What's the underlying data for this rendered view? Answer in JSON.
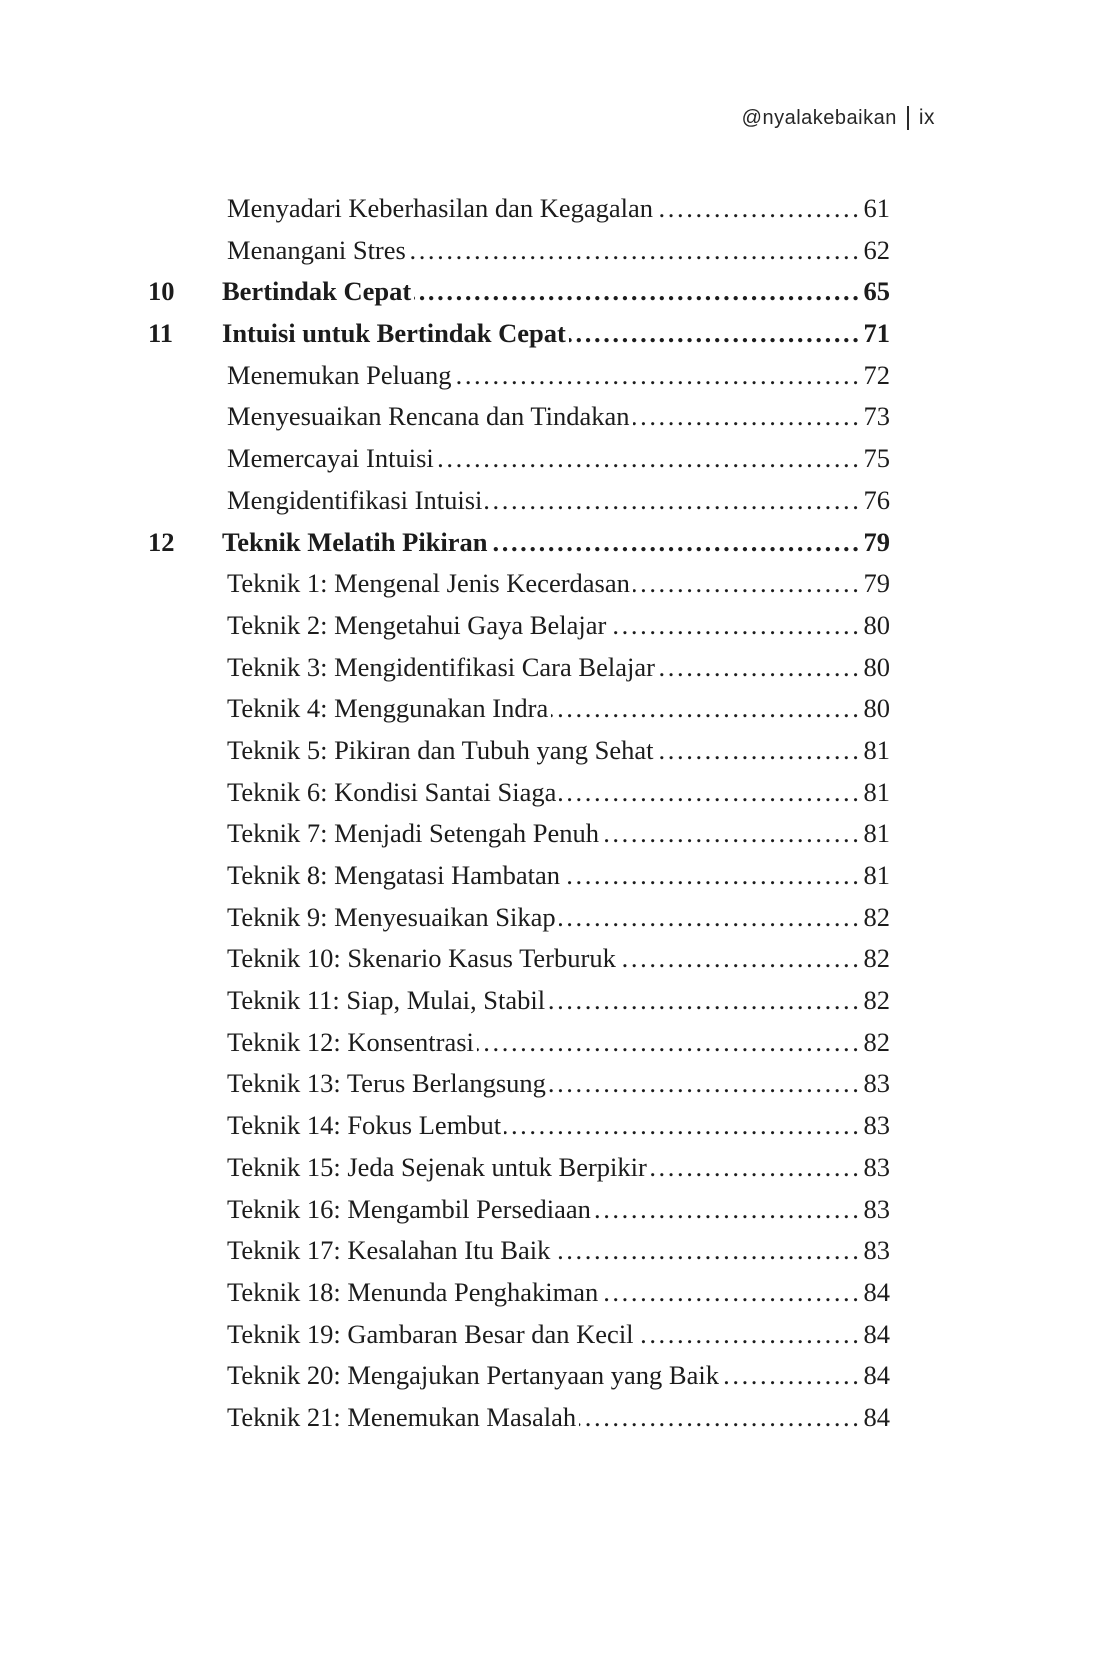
{
  "header": {
    "handle": "@nyalakebaikan",
    "separator": "|",
    "folio": "ix"
  },
  "toc": {
    "entries": [
      {
        "num": "",
        "title": "Menyadari Keberhasilan dan Kegagalan",
        "page": "61",
        "chapter": false
      },
      {
        "num": "",
        "title": "Menangani Stres",
        "page": "62",
        "chapter": false
      },
      {
        "num": "10",
        "title": "Bertindak Cepat",
        "page": "65",
        "chapter": true
      },
      {
        "num": "11",
        "title": "Intuisi untuk Bertindak Cepat",
        "page": "71",
        "chapter": true
      },
      {
        "num": "",
        "title": "Menemukan Peluang",
        "page": "72",
        "chapter": false
      },
      {
        "num": "",
        "title": "Menyesuaikan Rencana dan Tindakan",
        "page": "73",
        "chapter": false
      },
      {
        "num": "",
        "title": "Memercayai Intuisi",
        "page": "75",
        "chapter": false
      },
      {
        "num": "",
        "title": "Mengidentifikasi Intuisi",
        "page": "76",
        "chapter": false
      },
      {
        "num": "12",
        "title": "Teknik Melatih Pikiran",
        "page": "79",
        "chapter": true
      },
      {
        "num": "",
        "title": "Teknik 1: Mengenal Jenis Kecerdasan",
        "page": "79",
        "chapter": false
      },
      {
        "num": "",
        "title": "Teknik 2: Mengetahui Gaya Belajar",
        "page": "80",
        "chapter": false
      },
      {
        "num": "",
        "title": "Teknik 3: Mengidentifikasi Cara Belajar",
        "page": "80",
        "chapter": false
      },
      {
        "num": "",
        "title": "Teknik 4: Menggunakan Indra",
        "page": "80",
        "chapter": false
      },
      {
        "num": "",
        "title": "Teknik 5: Pikiran dan Tubuh yang Sehat",
        "page": "81",
        "chapter": false
      },
      {
        "num": "",
        "title": "Teknik 6: Kondisi Santai Siaga",
        "page": "81",
        "chapter": false
      },
      {
        "num": "",
        "title": "Teknik 7: Menjadi Setengah Penuh",
        "page": "81",
        "chapter": false
      },
      {
        "num": "",
        "title": "Teknik 8: Mengatasi Hambatan",
        "page": "81",
        "chapter": false
      },
      {
        "num": "",
        "title": "Teknik 9: Menyesuaikan Sikap",
        "page": "82",
        "chapter": false
      },
      {
        "num": "",
        "title": "Teknik 10: Skenario Kasus Terburuk",
        "page": "82",
        "chapter": false
      },
      {
        "num": "",
        "title": "Teknik 11: Siap, Mulai, Stabil",
        "page": "82",
        "chapter": false
      },
      {
        "num": "",
        "title": "Teknik 12: Konsentrasi",
        "page": "82",
        "chapter": false
      },
      {
        "num": "",
        "title": "Teknik 13: Terus Berlangsung",
        "page": "83",
        "chapter": false
      },
      {
        "num": "",
        "title": "Teknik 14: Fokus Lembut",
        "page": "83",
        "chapter": false
      },
      {
        "num": "",
        "title": "Teknik 15: Jeda Sejenak untuk Berpikir",
        "page": "83",
        "chapter": false
      },
      {
        "num": "",
        "title": "Teknik 16: Mengambil Persediaan",
        "page": "83",
        "chapter": false
      },
      {
        "num": "",
        "title": "Teknik 17: Kesalahan Itu Baik",
        "page": "83",
        "chapter": false
      },
      {
        "num": "",
        "title": "Teknik 18: Menunda Penghakiman",
        "page": "84",
        "chapter": false
      },
      {
        "num": "",
        "title": "Teknik 19: Gambaran Besar dan Kecil",
        "page": "84",
        "chapter": false
      },
      {
        "num": "",
        "title": "Teknik 20: Mengajukan Pertanyaan yang Baik",
        "page": "84",
        "chapter": false
      },
      {
        "num": "",
        "title": "Teknik 21: Menemukan Masalah",
        "page": "84",
        "chapter": false
      }
    ]
  }
}
